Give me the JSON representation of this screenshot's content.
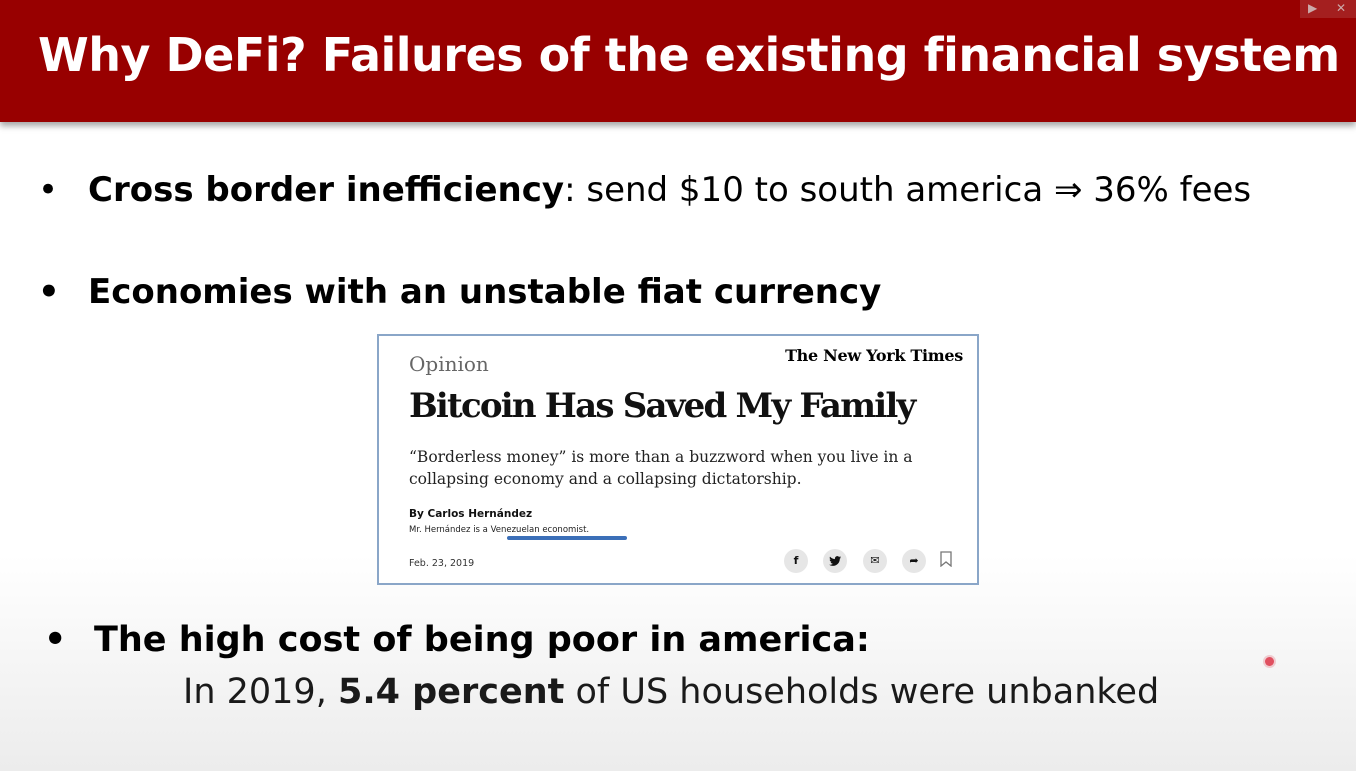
{
  "slide": {
    "title": "Why DeFi?  Failures of the existing financial system",
    "bullets": {
      "b1_bold": "Cross border inefficiency",
      "b1_rest": ":  send $10 to south america  ⇒  36% fees",
      "b2": "Economies with an unstable fiat currency",
      "b3": "The high cost of being poor in america:",
      "sub_pre": "In 2019, ",
      "sub_bold": "5.4 percent",
      "sub_post": " of US households were unbanked"
    },
    "bullet_char": "•"
  },
  "article": {
    "section": "Opinion",
    "publication": "The New York Times",
    "headline": "Bitcoin Has Saved My Family",
    "summary": "“Borderless money” is more than a buzzword when you live in a collapsing economy and a collapsing dictatorship.",
    "byline": "By Carlos Hernández",
    "bio": "Mr. Hernández is a Venezuelan economist.",
    "date": "Feb. 23, 2019",
    "share_icons": {
      "facebook": "f",
      "twitter": "🐦",
      "email": "✉",
      "share": "➦"
    }
  },
  "colors": {
    "title_bar": "#980000",
    "highlight": "#3b6fb8",
    "card_border": "#8aa6c8",
    "record_dot": "#e05060"
  }
}
